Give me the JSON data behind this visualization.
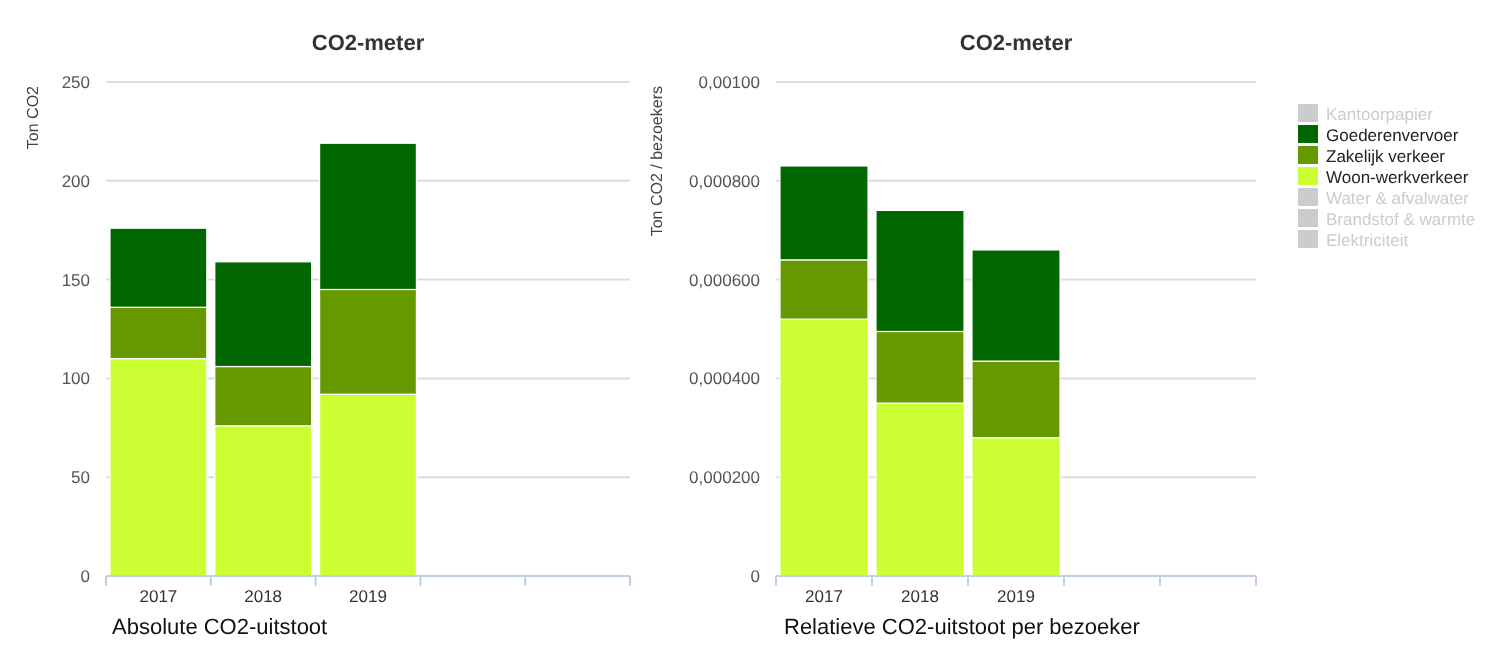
{
  "chart_data": [
    {
      "type": "bar",
      "title": "CO2-meter",
      "ylabel": "Ton CO2",
      "categories": [
        "2017",
        "2018",
        "2019",
        null,
        null
      ],
      "stacked": true,
      "grid": "y",
      "ylim": [
        0,
        250
      ],
      "yticks": [
        0,
        50,
        100,
        150,
        200,
        250
      ],
      "annotations": [
        "Absolute CO2-uitstoot"
      ],
      "series": [
        {
          "color": "#ccff33",
          "values": [
            110,
            76,
            92,
            null,
            null
          ]
        },
        {
          "color": "#669900",
          "values": [
            26,
            30,
            53,
            null,
            null
          ]
        },
        {
          "color": "#006600",
          "values": [
            40,
            53,
            74,
            null,
            null
          ]
        }
      ]
    },
    {
      "type": "bar",
      "title": "CO2-meter",
      "ylabel": "Ton CO2 / bezoekers",
      "categories": [
        "2017",
        "2018",
        "2019",
        null,
        null
      ],
      "stacked": true,
      "grid": "y",
      "legend": "right",
      "ylim": [
        0,
        0.001
      ],
      "yticks": [
        0,
        {
          "value": 0.0002,
          "label": "0,000200"
        },
        {
          "value": 0.0004,
          "label": "0,000400"
        },
        {
          "value": 0.0006,
          "label": "0,000600"
        },
        {
          "value": 0.0008,
          "label": "0,000800"
        },
        {
          "value": 0.001,
          "label": "0,00100"
        }
      ],
      "annotations": [
        "Relatieve CO2-uitstoot per bezoeker"
      ],
      "series": [
        {
          "name": "Elektriciteit",
          "color": "#cccccc",
          "values": [
            null,
            null,
            null,
            null,
            null
          ]
        },
        {
          "name": "Brandstof & warmte",
          "color": "#cccccc",
          "values": [
            null,
            null,
            null,
            null,
            null
          ]
        },
        {
          "name": "Water & afvalwater",
          "color": "#cccccc",
          "values": [
            null,
            null,
            null,
            null,
            null
          ]
        },
        {
          "name": "Woon-werkverkeer",
          "color": "#ccff33",
          "values": [
            0.00052,
            0.00035,
            0.00028,
            null,
            null
          ]
        },
        {
          "name": "Zakelijk verkeer",
          "color": "#669900",
          "values": [
            0.00012,
            0.000145,
            0.000155,
            null,
            null
          ]
        },
        {
          "name": "Goederenvervoer",
          "color": "#006600",
          "values": [
            0.00019,
            0.000245,
            0.000225,
            null,
            null
          ]
        },
        {
          "name": "Kantoorpapier",
          "color": "#cccccc",
          "values": [
            null,
            null,
            null,
            null,
            null
          ]
        }
      ]
    }
  ]
}
